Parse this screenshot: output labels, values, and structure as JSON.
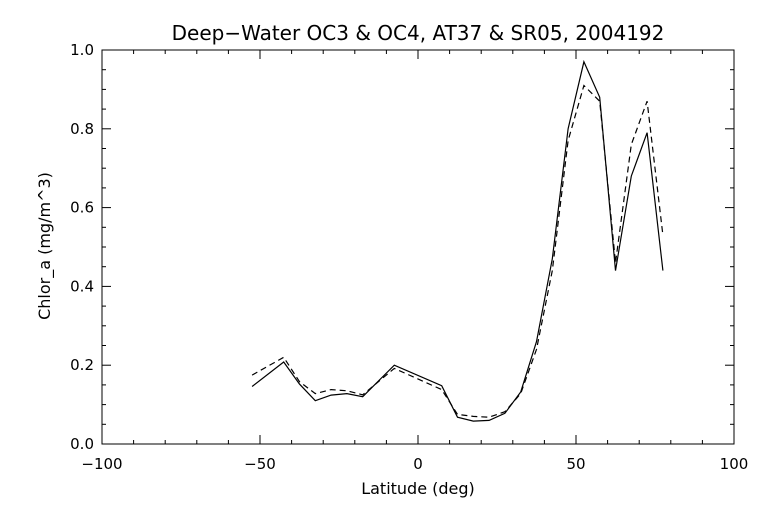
{
  "chart_data": {
    "type": "line",
    "title": "Deep−Water OC3 & OC4, AT37 & SR05, 2004192",
    "xlabel": "Latitude (deg)",
    "ylabel": "Chlor_a (mg/m^3)",
    "xlim": [
      -100,
      100
    ],
    "ylim": [
      0.0,
      1.0
    ],
    "x_ticks": [
      -100,
      -50,
      0,
      50,
      100
    ],
    "x_tick_labels": [
      "−100",
      "−50",
      "0",
      "50",
      "100"
    ],
    "y_ticks": [
      0.0,
      0.2,
      0.4,
      0.6,
      0.8,
      1.0
    ],
    "y_tick_labels": [
      "0.0",
      "0.2",
      "0.4",
      "0.6",
      "0.8",
      "1.0"
    ],
    "grid": false,
    "series": [
      {
        "style": "solid",
        "x": [
          -52.5,
          -42.5,
          -37.5,
          -32.5,
          -27.5,
          -22.5,
          -17.5,
          -7.5,
          7.5,
          12.5,
          17.5,
          22.5,
          27.5,
          32.5,
          37.5,
          42.5,
          47.5,
          52.5,
          57.5,
          62.5,
          67.5,
          72.5,
          77.5
        ],
        "values": [
          0.146,
          0.208,
          0.152,
          0.11,
          0.124,
          0.128,
          0.12,
          0.2,
          0.148,
          0.068,
          0.058,
          0.06,
          0.078,
          0.132,
          0.26,
          0.47,
          0.8,
          0.97,
          0.88,
          0.44,
          0.68,
          0.79,
          0.44
        ]
      },
      {
        "style": "dashed",
        "x": [
          -52.5,
          -42.5,
          -37.5,
          -32.5,
          -27.5,
          -22.5,
          -17.5,
          -7.5,
          7.5,
          12.5,
          17.5,
          22.5,
          27.5,
          32.5,
          37.5,
          42.5,
          47.5,
          52.5,
          57.5,
          62.5,
          67.5,
          72.5,
          77.5
        ],
        "values": [
          0.175,
          0.22,
          0.158,
          0.128,
          0.138,
          0.135,
          0.125,
          0.192,
          0.138,
          0.075,
          0.07,
          0.068,
          0.082,
          0.128,
          0.24,
          0.44,
          0.77,
          0.91,
          0.87,
          0.46,
          0.76,
          0.87,
          0.53
        ]
      }
    ]
  }
}
